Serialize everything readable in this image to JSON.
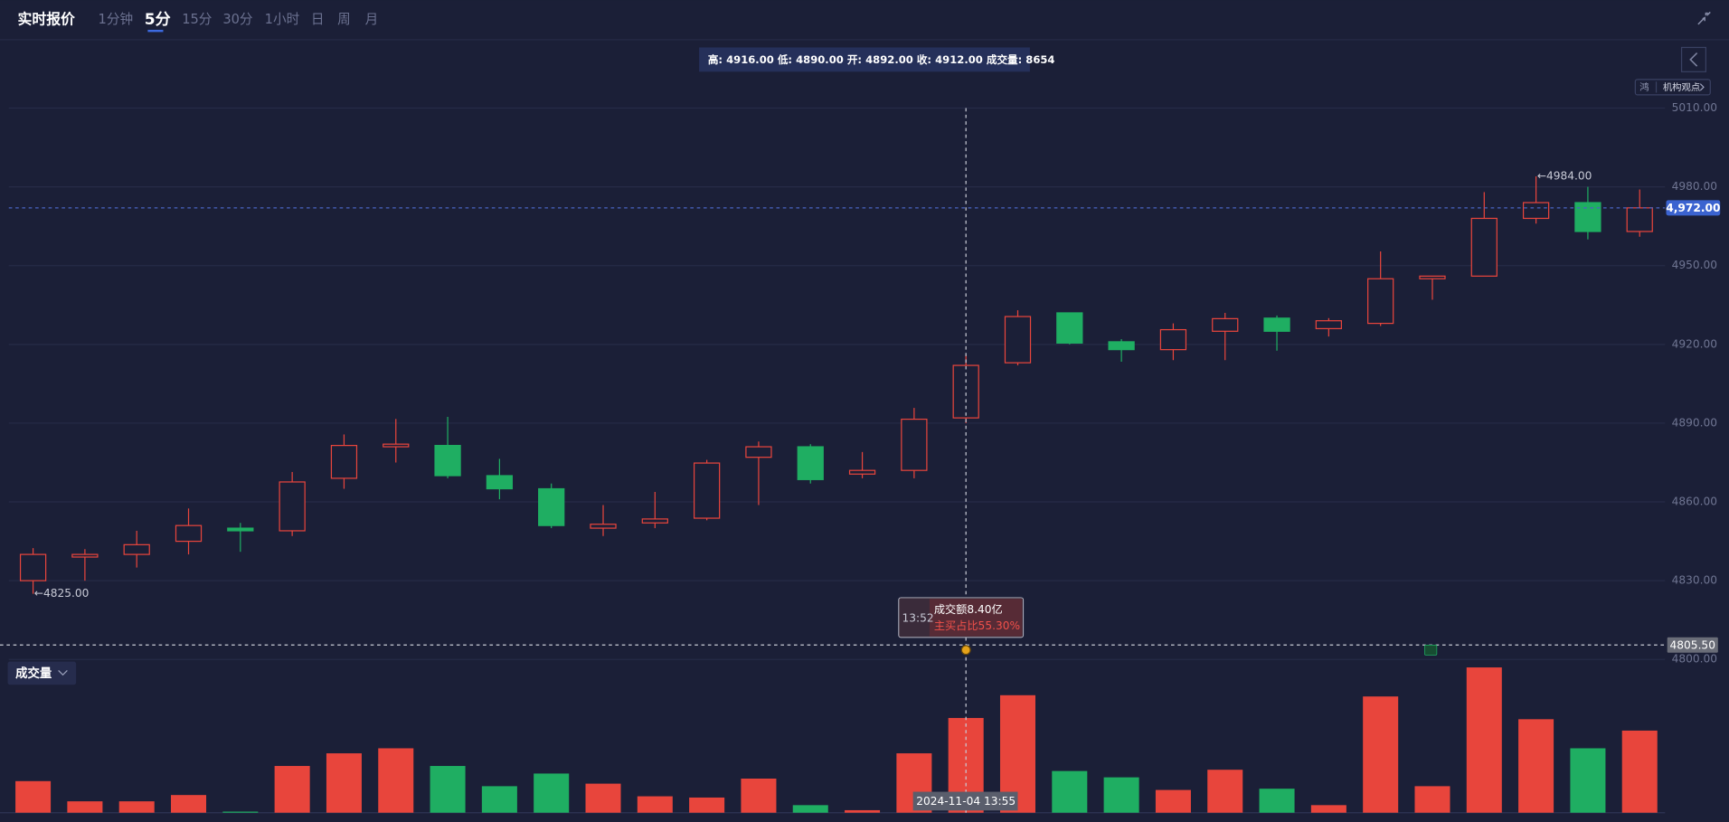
{
  "header": {
    "title": "实时报价",
    "tabs": [
      "1分钟",
      "5分",
      "15分",
      "30分",
      "1小时",
      "日",
      "周",
      "月"
    ],
    "active_tab": 1
  },
  "info_bar": "高: 4916.00 低: 4890.00 开: 4892.00 收: 4912.00 成交量: 8654",
  "side_buttons": {
    "icon": "鸿",
    "view": "机构观点"
  },
  "volume_button": "成交量",
  "tooltip": {
    "time": "13:52",
    "amount": "成交额8.40亿",
    "buy_ratio": "主买占比55.30%"
  },
  "chart_data": {
    "type": "candlestick",
    "up_color": "#e8453c",
    "down_color": "#1fae62",
    "open": [
      4830,
      4839,
      4840,
      4845,
      4850,
      4849,
      4869,
      4881,
      4881.5,
      4870,
      4865,
      4850,
      4852,
      4853.8,
      4877,
      4881,
      4870.6,
      4872,
      4892,
      4913,
      4932,
      4921,
      4918,
      4925,
      4930,
      4926,
      4928,
      4945,
      4946,
      4968,
      4974,
      4963
    ],
    "high": [
      4842.4,
      4842,
      4849,
      4857.5,
      4852,
      4871.4,
      4885.7,
      4891.6,
      4892.4,
      4876.4,
      4867,
      4858.8,
      4863.8,
      4876,
      4883,
      4882,
      4879,
      4895.8,
      4916,
      4933,
      4932,
      4922,
      4928,
      4932,
      4931,
      4930,
      4955.4,
      4946,
      4978,
      4984,
      4980,
      4979
    ],
    "low": [
      4825,
      4830,
      4835,
      4840,
      4841,
      4847,
      4865,
      4875,
      4869,
      4861,
      4850,
      4847,
      4850,
      4853,
      4858.8,
      4867,
      4869,
      4869,
      4890,
      4912,
      4920,
      4913.4,
      4914,
      4914,
      4917.6,
      4923,
      4927,
      4937,
      4946,
      4966,
      4960,
      4961
    ],
    "close": [
      4840,
      4840,
      4843.7,
      4851,
      4849,
      4867.6,
      4881.5,
      4882,
      4870,
      4865,
      4851,
      4851.5,
      4853.5,
      4874.8,
      4881,
      4868.5,
      4872,
      4891.5,
      4912,
      4930.6,
      4920.5,
      4918,
      4925.6,
      4929.8,
      4925,
      4929,
      4945,
      4946,
      4968,
      4974,
      4963,
      4972
    ],
    "volume": [
      2885,
      1040,
      1040,
      1615,
      100,
      4270,
      5424,
      5885,
      4270,
      2423,
      3577,
      2654,
      1500,
      1385,
      3116,
      692,
      230,
      5424,
      8654,
      10732,
      3808,
      3231,
      2077,
      3924,
      2193,
      692,
      10617,
      2423,
      13270,
      8540,
      5885,
      7500
    ],
    "ylim": [
      4800,
      5010
    ],
    "yticks": [
      {
        "value": 5010,
        "label": "5010.00"
      },
      {
        "value": 4980,
        "label": "4980.00"
      },
      {
        "value": 4950,
        "label": "4950.00"
      },
      {
        "value": 4920,
        "label": "4920.00"
      },
      {
        "value": 4890,
        "label": "4890.00"
      },
      {
        "value": 4860,
        "label": "4860.00"
      },
      {
        "value": 4830,
        "label": "4830.00"
      },
      {
        "value": 4800,
        "label": "4800.00"
      }
    ],
    "volume_ylim": [
      0,
      14000
    ],
    "grid": true,
    "max_label": "←4984.00",
    "min_label": "←4825.00",
    "last_price": {
      "value": 4972,
      "label": "4,972.00"
    },
    "crosshair": {
      "value": 4805.5,
      "label": "4805.50",
      "date": "2024-11-04 13:55"
    }
  }
}
